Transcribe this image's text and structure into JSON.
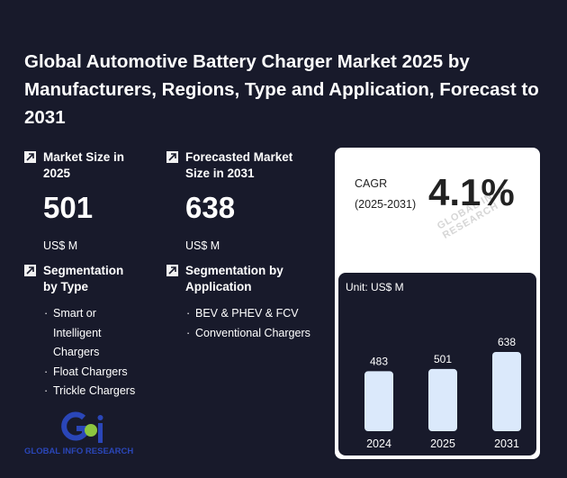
{
  "title": "Global Automotive Battery Charger Market 2025 by Manufacturers, Regions, Type and Application, Forecast to 2031",
  "market_size": {
    "label": "Market Size in 2025",
    "value": "501",
    "unit": "US$ M"
  },
  "forecast_size": {
    "label": "Forecasted Market Size in 2031",
    "value": "638",
    "unit": "US$ M"
  },
  "seg_type": {
    "label": "Segmentation by Type",
    "items": [
      "Smart or Intelligent Chargers",
      "Float Chargers",
      "Trickle Chargers"
    ]
  },
  "seg_app": {
    "label": "Segmentation by Application",
    "items": [
      "BEV & PHEV & FCV",
      "Conventional Chargers"
    ]
  },
  "cagr": {
    "label_line1": "CAGR",
    "label_line2": "(2025-2031)",
    "value": "4.1%"
  },
  "watermark": "GLOBAL INFO RESEARCH",
  "logo_text": "GLOBAL INFO RESEARCH",
  "colors": {
    "background": "#181a2b",
    "bar": "#dbe9fb",
    "logo_blue": "#2a46b8",
    "logo_green": "#8cc63f"
  },
  "chart_data": {
    "type": "bar",
    "unit_label": "Unit: US$ M",
    "categories": [
      "2024",
      "2025",
      "2031"
    ],
    "values": [
      483,
      501,
      638
    ]
  }
}
